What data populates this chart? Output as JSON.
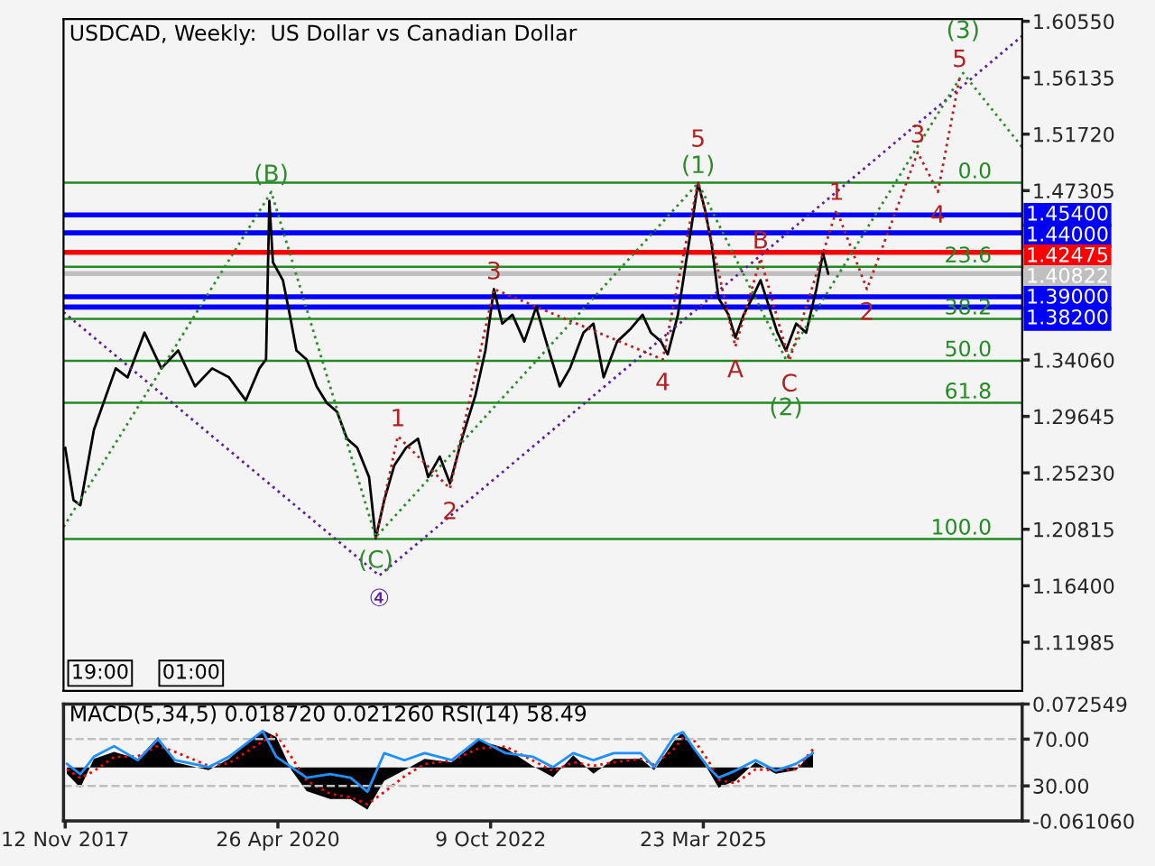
{
  "chart_data": [
    {
      "type": "line",
      "title": "USDCAD, Weekly:  US Dollar vs Canadian Dollar",
      "xlim": [
        "2017-11-05",
        "2028-11-25"
      ],
      "ylim": [
        1.0817,
        1.6073
      ],
      "yticks": [
        {
          "value": 1.6055,
          "label": "1.60550"
        },
        {
          "value": 1.56135,
          "label": "1.56135"
        },
        {
          "value": 1.5172,
          "label": "1.51720"
        },
        {
          "value": 1.47305,
          "label": "1.47305"
        },
        {
          "value": 1.3406,
          "label": "1.34060"
        },
        {
          "value": 1.29645,
          "label": "1.29645"
        },
        {
          "value": 1.2523,
          "label": "1.25230"
        },
        {
          "value": 1.20815,
          "label": "1.20815"
        },
        {
          "value": 1.164,
          "label": "1.16400"
        },
        {
          "value": 1.11985,
          "label": "1.11985"
        }
      ],
      "tick_labels": "y",
      "grid": false,
      "legend": false,
      "series": [
        {
          "color": "#000000",
          "line_style": "solid",
          "x": [
            "2017-11-12",
            "2017-12-17",
            "2018-01-15",
            "2018-03-13",
            "2018-06-13",
            "2018-08-02",
            "2018-10-12",
            "2018-12-22",
            "2019-03-03",
            "2019-05-13",
            "2019-07-24",
            "2019-10-03",
            "2019-12-13",
            "2020-02-08",
            "2020-03-07",
            "2020-03-21",
            "2020-04-05",
            "2020-05-17",
            "2020-06-15",
            "2020-07-13",
            "2020-08-25",
            "2020-10-06",
            "2020-11-18",
            "2020-12-31",
            "2021-02-11",
            "2021-03-26",
            "2021-05-15",
            "2021-06-12",
            "2021-07-18",
            "2021-08-29",
            "2021-10-18",
            "2021-12-07",
            "2022-01-19",
            "2022-03-09",
            "2022-04-21",
            "2022-06-10",
            "2022-08-06",
            "2022-09-17",
            "2022-10-23",
            "2022-11-27",
            "2023-01-09",
            "2023-02-28",
            "2023-04-19",
            "2023-05-31",
            "2023-07-27",
            "2023-09-08",
            "2023-11-04",
            "2023-12-16",
            "2024-01-28",
            "2024-03-25",
            "2024-05-21",
            "2024-07-10",
            "2024-08-14",
            "2024-09-26",
            "2024-10-24",
            "2024-12-06",
            "2025-01-03",
            "2025-02-01",
            "2025-03-01",
            "2025-03-30",
            "2025-04-27",
            "2025-05-26",
            "2025-07-07",
            "2025-08-05",
            "2025-09-09",
            "2025-10-15",
            "2025-11-19",
            "2025-12-25",
            "2026-01-29",
            "2026-03-06",
            "2026-04-18",
            "2026-05-30",
            "2026-07-12",
            "2026-08-09",
            "2026-08-31"
          ],
          "values": [
            1.272,
            1.231,
            1.227,
            1.286,
            1.334,
            1.327,
            1.362,
            1.334,
            1.348,
            1.32,
            1.334,
            1.327,
            1.309,
            1.334,
            1.341,
            1.465,
            1.417,
            1.403,
            1.376,
            1.348,
            1.341,
            1.32,
            1.307,
            1.3,
            1.279,
            1.272,
            1.249,
            1.201,
            1.231,
            1.258,
            1.272,
            1.279,
            1.249,
            1.265,
            1.244,
            1.279,
            1.313,
            1.348,
            1.396,
            1.369,
            1.376,
            1.355,
            1.382,
            1.355,
            1.32,
            1.334,
            1.362,
            1.369,
            1.327,
            1.355,
            1.365,
            1.376,
            1.362,
            1.355,
            1.345,
            1.376,
            1.41,
            1.445,
            1.479,
            1.458,
            1.431,
            1.389,
            1.376,
            1.358,
            1.376,
            1.389,
            1.403,
            1.382,
            1.362,
            1.348,
            1.369,
            1.362,
            1.396,
            1.424,
            1.408
          ]
        },
        {
          "color": "#5b1f9e",
          "line_style": "dotted",
          "x": [
            "2017-11-05",
            "2021-06-27",
            "2028-11-25"
          ],
          "values": [
            1.378,
            1.172,
            1.594
          ]
        },
        {
          "color": "#2e8b2e",
          "line_style": "dotted",
          "x": [
            "2017-11-05",
            "2020-03-29",
            "2021-06-12",
            "2025-03-01",
            "2026-03-06",
            "2028-03-21",
            "2028-11-25"
          ],
          "values": [
            1.21,
            1.472,
            1.202,
            1.479,
            1.341,
            1.565,
            1.507
          ]
        },
        {
          "color": "#b22222",
          "line_style": "dotted",
          "x": [
            "2021-06-12",
            "2021-09-13",
            "2022-04-21",
            "2022-10-23",
            "2024-10-03",
            "2025-03-01",
            "2025-08-05",
            "2025-11-19",
            "2026-03-20",
            "2026-10-05",
            "2027-02-10",
            "2027-09-12",
            "2027-12-06",
            "2028-03-07"
          ],
          "values": [
            1.201,
            1.281,
            1.24,
            1.396,
            1.341,
            1.48,
            1.351,
            1.42,
            1.34,
            1.458,
            1.396,
            1.503,
            1.472,
            1.562
          ]
        }
      ],
      "ref_lines": [
        {
          "axis": "y",
          "value": 1.454,
          "label": "1.45400",
          "color": "#0000ff"
        },
        {
          "axis": "y",
          "value": 1.44,
          "label": "1.44000",
          "color": "#0000ff"
        },
        {
          "axis": "y",
          "value": 1.42475,
          "label": "1.42475",
          "color": "#ff0000"
        },
        {
          "axis": "y",
          "value": 1.40822,
          "label": "1.40822",
          "color": "#c0c0c0"
        },
        {
          "axis": "y",
          "value": 1.39,
          "label": "1.39000",
          "color": "#0000ff"
        },
        {
          "axis": "y",
          "value": 1.382,
          "label": "1.38200",
          "color": "#0000ff"
        },
        {
          "axis": "y",
          "value": 1.4793,
          "color": "#228b22"
        },
        {
          "axis": "y",
          "value": 1.4135,
          "color": "#228b22"
        },
        {
          "axis": "y",
          "value": 1.3728,
          "color": "#228b22"
        },
        {
          "axis": "y",
          "value": 1.34,
          "color": "#228b22"
        },
        {
          "axis": "y",
          "value": 1.3071,
          "color": "#228b22"
        },
        {
          "axis": "y",
          "value": 1.2006,
          "color": "#228b22"
        }
      ],
      "annotations": [
        {
          "text": "(B)",
          "x": "2020-03-29",
          "y": 1.472
        },
        {
          "text": "(C)",
          "x": "2021-06-12",
          "y": 1.202
        },
        {
          "text": "④",
          "x": "2021-06-27",
          "y": 1.172
        },
        {
          "text": "1",
          "x": "2021-09-13",
          "y": 1.281
        },
        {
          "text": "2",
          "x": "2022-04-21",
          "y": 1.24
        },
        {
          "text": "3",
          "x": "2022-10-23",
          "y": 1.396
        },
        {
          "text": "4",
          "x": "2024-10-03",
          "y": 1.341
        },
        {
          "text": "(1)",
          "x": "2025-03-01",
          "y": 1.479
        },
        {
          "text": "5",
          "x": "2025-03-01",
          "y": 1.48
        },
        {
          "text": "A",
          "x": "2025-08-05",
          "y": 1.351
        },
        {
          "text": "B",
          "x": "2025-11-19",
          "y": 1.42
        },
        {
          "text": "C",
          "x": "2026-03-20",
          "y": 1.34
        },
        {
          "text": "(2)",
          "x": "2026-03-06",
          "y": 1.341
        },
        {
          "text": "1",
          "x": "2026-10-05",
          "y": 1.458
        },
        {
          "text": "2",
          "x": "2027-02-10",
          "y": 1.396
        },
        {
          "text": "3",
          "x": "2027-09-12",
          "y": 1.503
        },
        {
          "text": "4",
          "x": "2027-12-06",
          "y": 1.472
        },
        {
          "text": "5",
          "x": "2028-03-07",
          "y": 1.562
        },
        {
          "text": "(3)",
          "x": "2028-03-21",
          "y": 1.565
        },
        {
          "text": "0.0",
          "x": "2028-07-20",
          "y": 1.4793
        },
        {
          "text": "23.6",
          "x": "2028-07-20",
          "y": 1.4135
        },
        {
          "text": "38.2",
          "x": "2028-07-20",
          "y": 1.3728
        },
        {
          "text": "50.0",
          "x": "2028-07-20",
          "y": 1.34
        },
        {
          "text": "61.8",
          "x": "2028-07-20",
          "y": 1.3071
        },
        {
          "text": "100.0",
          "x": "2028-07-20",
          "y": 1.2006
        },
        "19:00",
        "01:00"
      ]
    },
    {
      "type": "area",
      "title": "MACD(5,34,5) 0.018720 0.021260 RSI(14) 58.49",
      "xlim": [
        "2017-11-05",
        "2028-11-25"
      ],
      "ylim": [
        -0.06106,
        0.072549
      ],
      "yticks": [
        {
          "value": 0.072549,
          "label": "0.072549"
        },
        {
          "value": -0.06106,
          "label": "-0.061060"
        }
      ],
      "y2lim": [
        0,
        100
      ],
      "y2ticks": [
        {
          "value": 70,
          "label": "70.00"
        },
        {
          "value": 30,
          "label": "30.00"
        }
      ],
      "xticks": [
        {
          "value": "2017-11-12",
          "label": "12 Nov 2017"
        },
        {
          "value": "2020-04-26",
          "label": "26 Apr 2020"
        },
        {
          "value": "2022-10-09",
          "label": "9 Oct 2022"
        },
        {
          "value": "2025-03-23",
          "label": "23 Mar 2025"
        }
      ],
      "grid": false,
      "legend": false,
      "x": [
        "2017-11-19",
        "2018-01-15",
        "2018-03-13",
        "2018-06-06",
        "2018-09-14",
        "2018-12-08",
        "2019-02-17",
        "2019-07-09",
        "2019-10-03",
        "2020-02-22",
        "2020-04-19",
        "2020-06-22",
        "2020-08-25",
        "2020-12-02",
        "2021-02-26",
        "2021-05-08",
        "2021-07-18",
        "2021-10-11",
        "2022-01-04",
        "2022-04-28",
        "2022-08-20",
        "2022-12-12",
        "2023-04-04",
        "2023-06-29",
        "2023-09-22",
        "2023-12-16",
        "2024-03-11",
        "2024-07-03",
        "2024-08-28",
        "2024-11-22",
        "2024-12-27",
        "2025-02-15",
        "2025-04-13",
        "2025-05-26",
        "2025-08-05",
        "2025-10-29",
        "2026-01-22",
        "2026-04-18",
        "2026-06-28"
      ],
      "series": [
        {
          "type": "area",
          "color": "#000000",
          "values": [
            -0.007,
            -0.023,
            0.01,
            0.018,
            0.01,
            0.035,
            0.006,
            -0.003,
            0.01,
            0.043,
            0.035,
            -0.003,
            -0.027,
            -0.036,
            -0.036,
            -0.048,
            -0.015,
            -0.003,
            0.01,
            0.006,
            0.031,
            0.022,
            0.002,
            -0.011,
            0.014,
            -0.007,
            0.01,
            0.01,
            -0.003,
            0.031,
            0.041,
            0.022,
            -0.003,
            -0.023,
            -0.015,
            0.006,
            -0.007,
            -0.003,
            0.019
          ]
        },
        {
          "type": "line",
          "color": "#ff0000",
          "line_style": "dotted",
          "values": [
            -0.002,
            -0.012,
            -0.004,
            0.012,
            0.013,
            0.025,
            0.018,
            0.002,
            0.005,
            0.03,
            0.038,
            0.012,
            -0.015,
            -0.03,
            -0.034,
            -0.042,
            -0.028,
            -0.01,
            0.004,
            0.008,
            0.022,
            0.024,
            0.008,
            -0.004,
            0.006,
            0.002,
            0.006,
            0.01,
            0.003,
            0.022,
            0.034,
            0.03,
            0.008,
            -0.014,
            -0.018,
            -0.002,
            -0.003,
            -0.002,
            0.021
          ]
        },
        {
          "type": "line",
          "color": "#1e90ff",
          "axis": "y2",
          "line_style": "solid",
          "values": [
            49,
            40,
            55,
            64,
            52,
            70,
            52,
            46,
            55,
            77,
            55,
            46,
            37,
            40,
            37,
            25,
            58,
            52,
            58,
            52,
            70,
            58,
            55,
            46,
            58,
            52,
            58,
            58,
            46,
            73,
            76,
            61,
            46,
            37,
            43,
            52,
            43,
            49,
            58
          ]
        }
      ],
      "ref_lines": [
        {
          "axis": "y2",
          "value": 70,
          "color": "#c0c0c0",
          "line_style": "dashed"
        },
        {
          "axis": "y2",
          "value": 30,
          "color": "#c0c0c0",
          "line_style": "dashed"
        }
      ]
    }
  ]
}
